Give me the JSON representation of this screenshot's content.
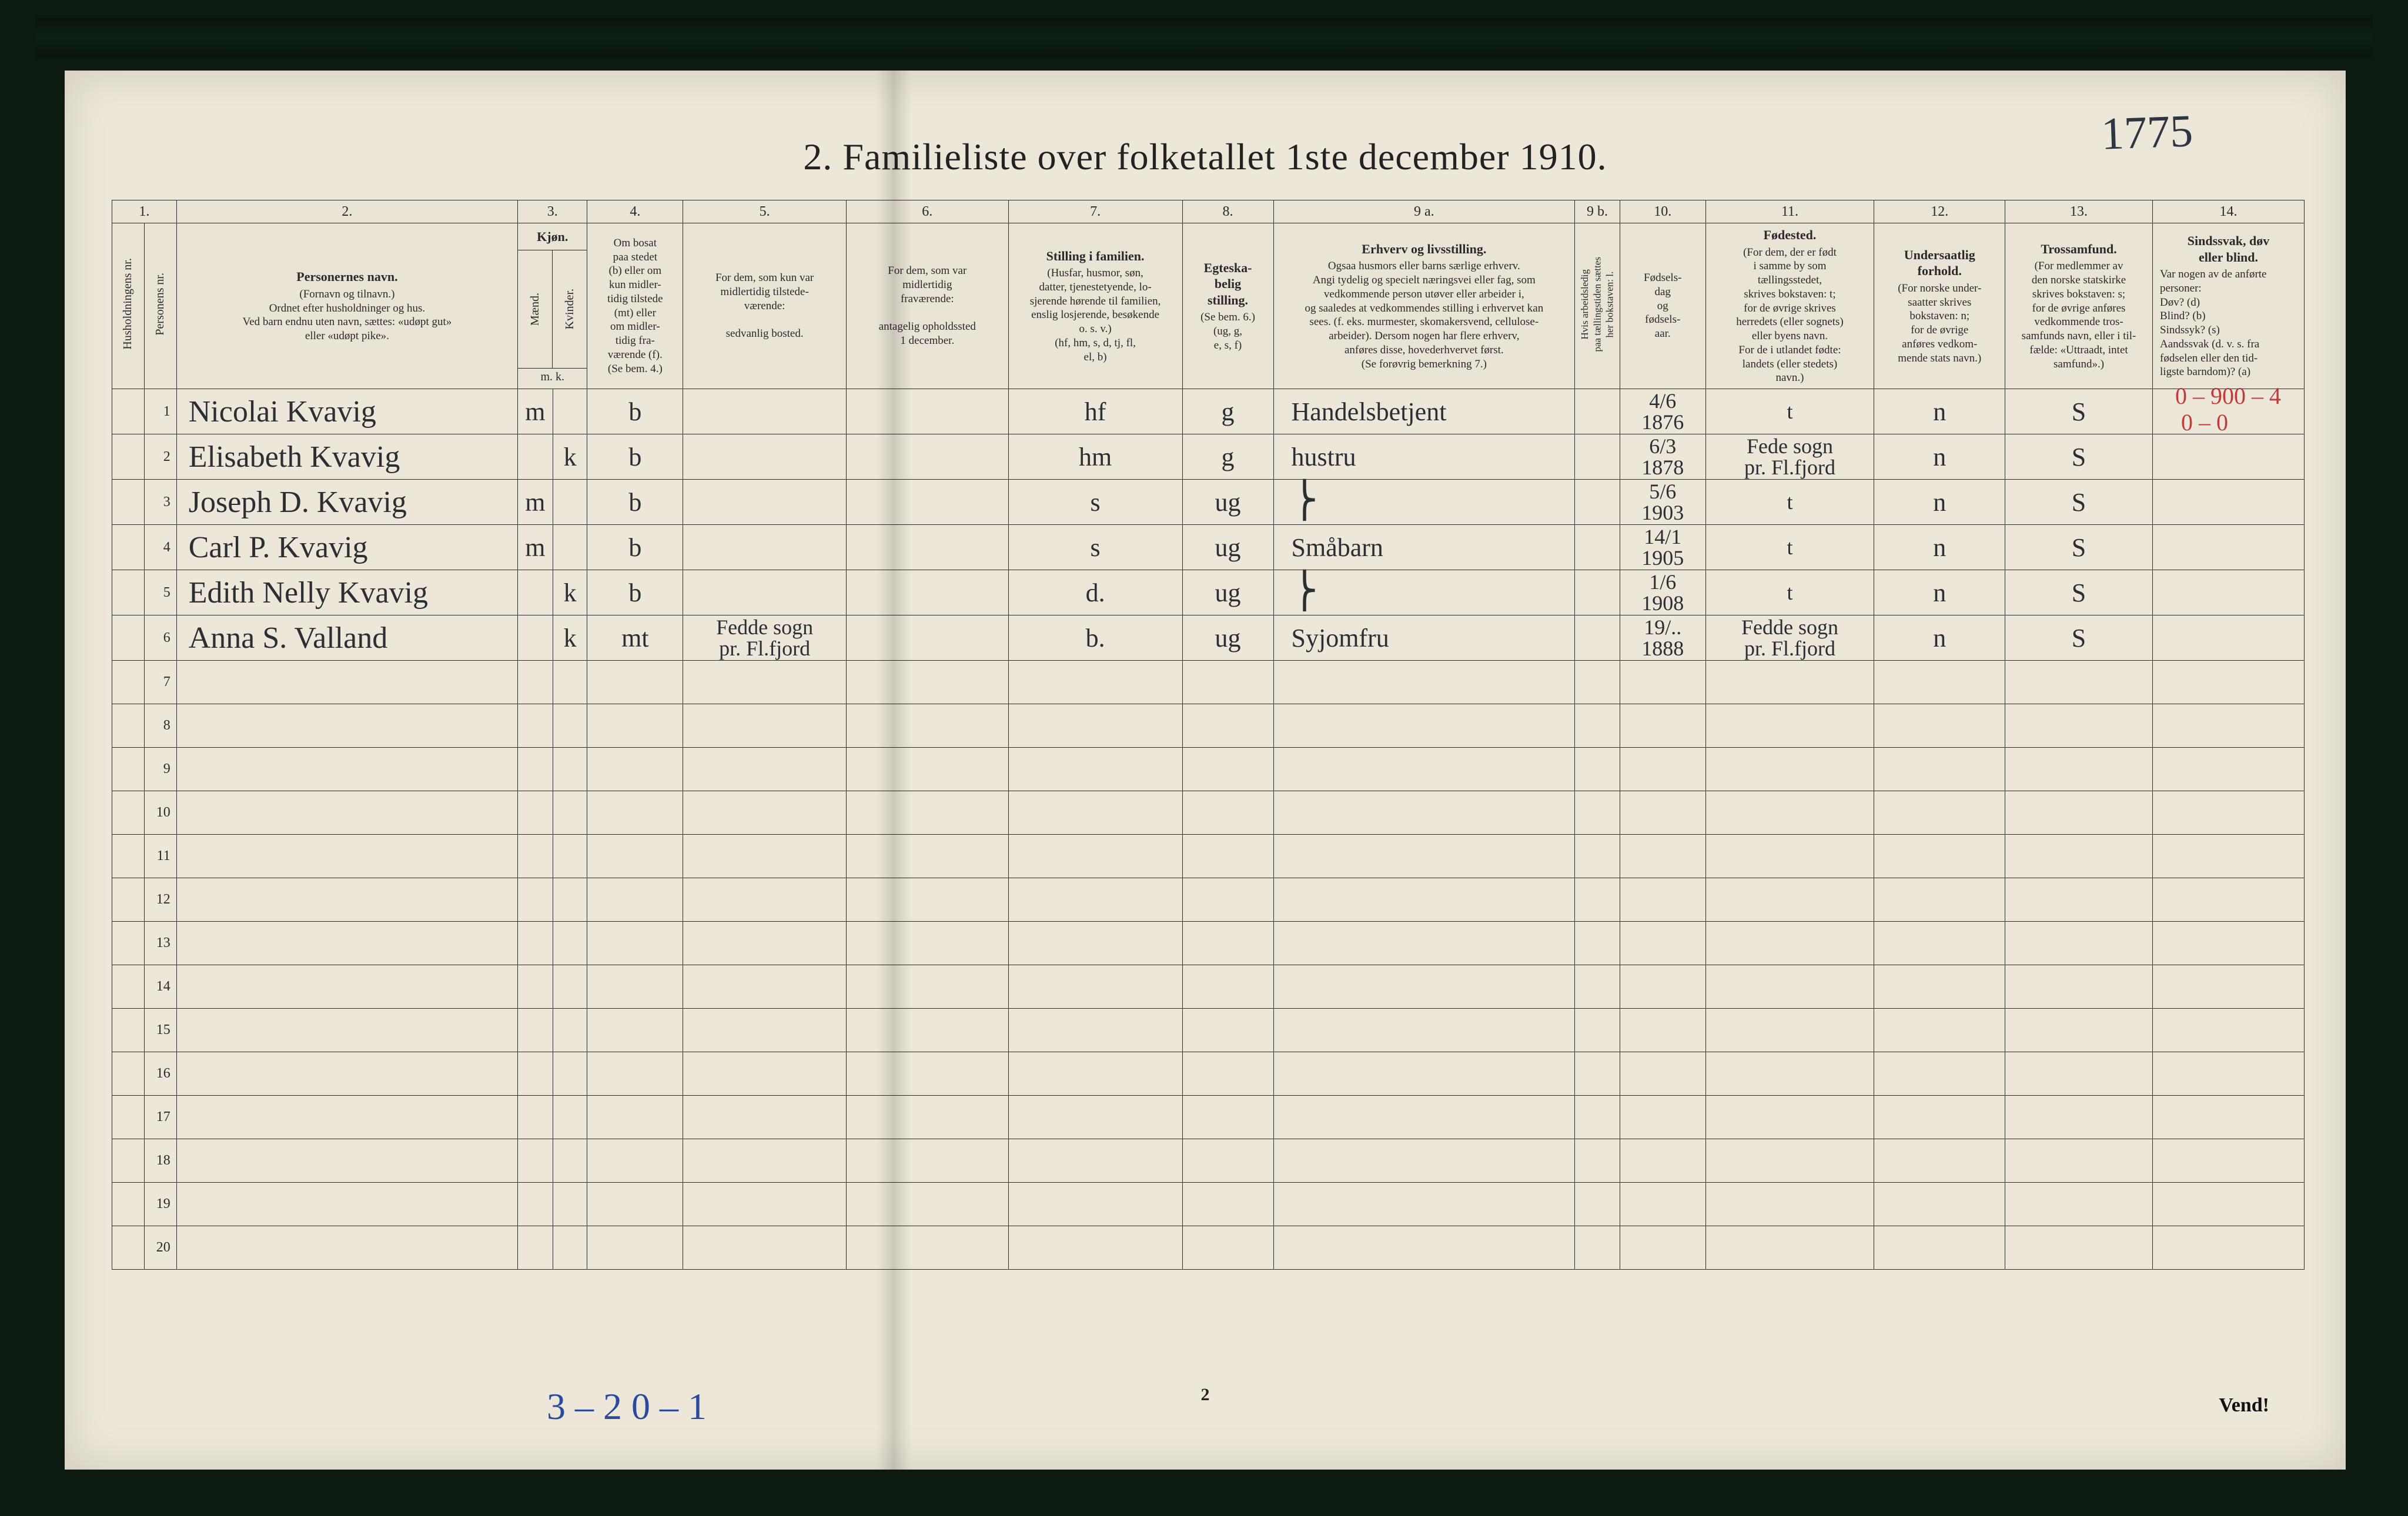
{
  "colors": {
    "page_bg": "#ece7d8",
    "ink": "#2a2a2a",
    "hand_ink": "#2b2f33",
    "red_pencil": "#c23a3a",
    "blue_pencil": "#2a4b9b",
    "frame_dark": "#0d1a10",
    "grid_line": "#2a2a2a"
  },
  "fonts": {
    "title_pt": 64,
    "header_pt": 22,
    "header_sub_pt": 19,
    "rownum_pt": 24,
    "hand_name_pt": 52,
    "hand_cell_pt": 44,
    "hand_small_pt": 36,
    "hand_margin_pt": 78
  },
  "title": "2.   Familieliste over folketallet 1ste december 1910.",
  "margin_topright": "1775",
  "margin_red_top": "0 – 900 – 4",
  "margin_red_top2": "0 – 0",
  "margin_blue_bottom": "3 – 2    0 – 1",
  "footer_page": "2",
  "footer_vend": "Vend!",
  "columns_numrow": [
    "1.",
    "2.",
    "3.",
    "4.",
    "5.",
    "6.",
    "7.",
    "8.",
    "9 a.",
    "9 b.",
    "10.",
    "11.",
    "12.",
    "13.",
    "14."
  ],
  "headers": {
    "c1": {
      "v": "Husholdningens nr."
    },
    "c1b": {
      "v": "Personens nr."
    },
    "c2": {
      "main": "Personernes navn.",
      "sub": "(Fornavn og tilnavn.)\nOrdnet efter husholdninger og hus.\nVed barn endnu uten navn, sættes: «udøpt gut»\neller «udøpt pike»."
    },
    "c3": {
      "main": "Kjøn.",
      "sub_a": "Mænd.",
      "sub_b": "Kvinder.",
      "foot": "m.   k."
    },
    "c4": {
      "main": "",
      "sub": "Om bosat\npaa stedet\n(b) eller om\nkun midler-\ntidig tilstede\n(mt) eller\nom midler-\ntidig fra-\nværende (f).\n(Se bem. 4.)"
    },
    "c5": {
      "main": "",
      "sub": "For dem, som kun var\nmidlertidig tilstede-\nværende:\n\nsedvanlig bosted."
    },
    "c6": {
      "main": "",
      "sub": "For dem, som var\nmidlertidig\nfraværende:\n\nantagelig opholdssted\n1 december."
    },
    "c7": {
      "main": "Stilling i familien.",
      "sub": "(Husfar, husmor, søn,\ndatter, tjenestetyende, lo-\nsjerende hørende til familien,\nenslig losjerende, besøkende\no. s. v.)\n(hf, hm, s, d, tj, fl,\nel, b)"
    },
    "c8": {
      "main": "Egteska-\nbelig\nstilling.",
      "sub": "(Se bem. 6.)\n(ug, g,\ne, s, f)"
    },
    "c9a": {
      "main": "Erhverv og livsstilling.",
      "sub": "Ogsaa husmors eller barns særlige erhverv.\nAngi tydelig og specielt næringsvei eller fag, som\nvedkommende person utøver eller arbeider i,\nog saaledes at vedkommendes stilling i erhvervet kan\nsees. (f. eks. murmester, skomakersvend, cellulose-\narbeider). Dersom nogen har flere erhverv,\nanføres disse, hovederhvervet først.\n(Se forøvrig bemerkning 7.)"
    },
    "c9b": {
      "v": "Hvis arbeidsledig\npaa tællingstiden sættes\nher bokstaven: l."
    },
    "c10": {
      "main": "",
      "sub": "Fødsels-\ndag\nog\nfødsels-\naar."
    },
    "c11": {
      "main": "Fødested.",
      "sub": "(For dem, der er født\ni samme by som\ntællingsstedet,\nskrives bokstaven: t;\nfor de øvrige skrives\nherredets (eller sognets)\neller byens navn.\nFor de i utlandet fødte:\nlandets (eller stedets)\nnavn.)"
    },
    "c12": {
      "main": "Undersaatlig\nforhold.",
      "sub": "(For norske under-\nsaatter skrives\nbokstaven: n;\nfor de øvrige\nanføres vedkom-\nmende stats navn.)"
    },
    "c13": {
      "main": "Trossamfund.",
      "sub": "(For medlemmer av\nden norske statskirke\nskrives bokstaven: s;\nfor de øvrige anføres\nvedkommende tros-\nsamfunds navn, eller i til-\nfælde: «Uttraadt, intet\nsamfund».)"
    },
    "c14": {
      "main": "Sindssvak, døv\neller blind.",
      "sub": "Var nogen av de anførte\npersoner:\nDøv?        (d)\nBlind?       (b)\nSindssyk?  (s)\nAandssvak (d. v. s. fra\nfødselen eller den tid-\nligste barndom)? (a)"
    }
  },
  "rows": [
    {
      "n": "1",
      "name": "Nicolai Kvavig",
      "m": "m",
      "k": "",
      "b": "b",
      "c5": "",
      "c6": "",
      "fam": "hf",
      "eg": "g",
      "erh": "Handelsbetjent",
      "l": "",
      "dob": "4/6 1876",
      "fsted": "t",
      "und": "n",
      "tro": "S",
      "c14": ""
    },
    {
      "n": "2",
      "name": "Elisabeth Kvavig",
      "m": "",
      "k": "k",
      "b": "b",
      "c5": "",
      "c6": "",
      "fam": "hm",
      "eg": "g",
      "erh": "hustru",
      "l": "",
      "dob": "6/3 1878",
      "fsted": "Fede sogn\npr. Fl.fjord",
      "und": "n",
      "tro": "S",
      "c14": ""
    },
    {
      "n": "3",
      "name": "Joseph D. Kvavig",
      "m": "m",
      "k": "",
      "b": "b",
      "c5": "",
      "c6": "",
      "fam": "s",
      "eg": "ug",
      "erh": "",
      "l": "",
      "dob": "5/6 1903",
      "fsted": "t",
      "und": "n",
      "tro": "S",
      "c14": ""
    },
    {
      "n": "4",
      "name": "Carl P. Kvavig",
      "m": "m",
      "k": "",
      "b": "b",
      "c5": "",
      "c6": "",
      "fam": "s",
      "eg": "ug",
      "erh": "Småbarn",
      "l": "",
      "dob": "14/1 1905",
      "fsted": "t",
      "und": "n",
      "tro": "S",
      "c14": ""
    },
    {
      "n": "5",
      "name": "Edith Nelly Kvavig",
      "m": "",
      "k": "k",
      "b": "b",
      "c5": "",
      "c6": "",
      "fam": "d.",
      "eg": "ug",
      "erh": "",
      "l": "",
      "dob": "1/6 1908",
      "fsted": "t",
      "und": "n",
      "tro": "S",
      "c14": ""
    },
    {
      "n": "6",
      "name": "Anna S. Valland",
      "m": "",
      "k": "k",
      "b": "mt",
      "c5": "Fedde sogn\npr. Fl.fjord",
      "c6": "",
      "fam": "b.",
      "eg": "ug",
      "erh": "Syjomfru",
      "l": "",
      "dob": "19/.. 1888",
      "fsted": "Fedde sogn\npr. Fl.fjord",
      "und": "n",
      "tro": "S",
      "c14": ""
    }
  ],
  "empty_row_numbers": [
    "7",
    "8",
    "9",
    "10",
    "11",
    "12",
    "13",
    "14",
    "15",
    "16",
    "17",
    "18",
    "19",
    "20"
  ]
}
